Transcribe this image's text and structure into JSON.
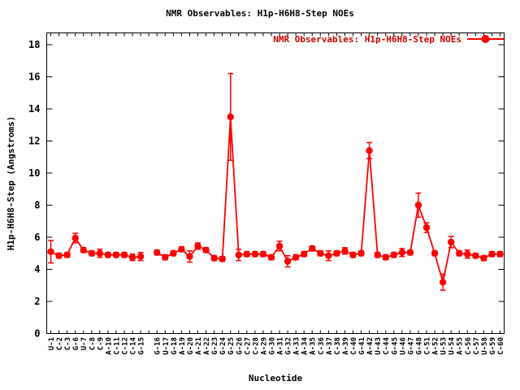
{
  "chart_data": {
    "type": "line",
    "title": "NMR Observables: H1p-H6H8-Step NOEs",
    "legend_label": "NMR Observables: H1p-H6H8-Step NOEs",
    "xlabel": "Nucleotide",
    "ylabel": "H1p-H6H8-Step (Angstroms)",
    "ylim": [
      0,
      18
    ],
    "ytick_step": 2,
    "ytick_labels": [
      "0",
      "2",
      "4",
      "6",
      "8",
      "10",
      "12",
      "14",
      "16",
      "18"
    ],
    "grid": false,
    "legend_position": "top-right-inside",
    "series_color": "#ff0000",
    "legend_text_color": "#cc0000",
    "marker": "filled-circle-with-errorbars",
    "gap_after_index": 11,
    "points": [
      {
        "label": "U-1",
        "value": 5.1,
        "err": 0.7
      },
      {
        "label": "C-2",
        "value": 4.85,
        "err": 0.15
      },
      {
        "label": "C-3",
        "value": 4.9,
        "err": 0.15
      },
      {
        "label": "G-6",
        "value": 5.95,
        "err": 0.3
      },
      {
        "label": "U-7",
        "value": 5.2,
        "err": 0.15
      },
      {
        "label": "C-8",
        "value": 5.0,
        "err": 0.15
      },
      {
        "label": "C-9",
        "value": 5.0,
        "err": 0.25
      },
      {
        "label": "A-10",
        "value": 4.9,
        "err": 0.15
      },
      {
        "label": "C-11",
        "value": 4.9,
        "err": 0.15
      },
      {
        "label": "C-12",
        "value": 4.9,
        "err": 0.15
      },
      {
        "label": "C-14",
        "value": 4.75,
        "err": 0.2
      },
      {
        "label": "G-15",
        "value": 4.8,
        "err": 0.25
      },
      {
        "label": "G-16",
        "value": 5.05,
        "err": 0.15
      },
      {
        "label": "U-17",
        "value": 4.75,
        "err": 0.15
      },
      {
        "label": "G-18",
        "value": 5.0,
        "err": 0.15
      },
      {
        "label": "A-19",
        "value": 5.25,
        "err": 0.15
      },
      {
        "label": "G-20",
        "value": 4.8,
        "err": 0.35
      },
      {
        "label": "A-21",
        "value": 5.45,
        "err": 0.2
      },
      {
        "label": "A-22",
        "value": 5.2,
        "err": 0.15
      },
      {
        "label": "G-23",
        "value": 4.7,
        "err": 0.15
      },
      {
        "label": "G-24",
        "value": 4.65,
        "err": 0.15
      },
      {
        "label": "G-25",
        "value": 13.5,
        "err": 2.7
      },
      {
        "label": "G-26",
        "value": 4.9,
        "err": 0.35
      },
      {
        "label": "C-27",
        "value": 4.95,
        "err": 0.15
      },
      {
        "label": "C-28",
        "value": 4.95,
        "err": 0.15
      },
      {
        "label": "A-29",
        "value": 4.95,
        "err": 0.15
      },
      {
        "label": "G-30",
        "value": 4.75,
        "err": 0.15
      },
      {
        "label": "A-31",
        "value": 5.45,
        "err": 0.3
      },
      {
        "label": "G-32",
        "value": 4.5,
        "err": 0.35
      },
      {
        "label": "A-33",
        "value": 4.75,
        "err": 0.15
      },
      {
        "label": "A-34",
        "value": 4.95,
        "err": 0.15
      },
      {
        "label": "A-35",
        "value": 5.3,
        "err": 0.15
      },
      {
        "label": "C-36",
        "value": 5.0,
        "err": 0.15
      },
      {
        "label": "A-37",
        "value": 4.85,
        "err": 0.3
      },
      {
        "label": "C-38",
        "value": 5.0,
        "err": 0.15
      },
      {
        "label": "A-39",
        "value": 5.15,
        "err": 0.2
      },
      {
        "label": "C-40",
        "value": 4.9,
        "err": 0.15
      },
      {
        "label": "G-41",
        "value": 5.0,
        "err": 0.15
      },
      {
        "label": "A-42",
        "value": 11.4,
        "err": 0.5
      },
      {
        "label": "U-43",
        "value": 4.9,
        "err": 0.15
      },
      {
        "label": "C-44",
        "value": 4.75,
        "err": 0.15
      },
      {
        "label": "G-45",
        "value": 4.9,
        "err": 0.15
      },
      {
        "label": "U-46",
        "value": 5.05,
        "err": 0.25
      },
      {
        "label": "G-47",
        "value": 5.05,
        "err": 0.15
      },
      {
        "label": "G-48",
        "value": 8.0,
        "err": 0.75
      },
      {
        "label": "C-51",
        "value": 6.6,
        "err": 0.3
      },
      {
        "label": "A-52",
        "value": 5.0,
        "err": 0.15
      },
      {
        "label": "U-53",
        "value": 3.2,
        "err": 0.5
      },
      {
        "label": "U-54",
        "value": 5.7,
        "err": 0.35
      },
      {
        "label": "A-55",
        "value": 5.0,
        "err": 0.15
      },
      {
        "label": "C-56",
        "value": 4.95,
        "err": 0.25
      },
      {
        "label": "C-57",
        "value": 4.85,
        "err": 0.15
      },
      {
        "label": "U-58",
        "value": 4.7,
        "err": 0.15
      },
      {
        "label": "G-59",
        "value": 4.95,
        "err": 0.15
      },
      {
        "label": "C-60",
        "value": 4.95,
        "err": 0.15
      }
    ]
  }
}
